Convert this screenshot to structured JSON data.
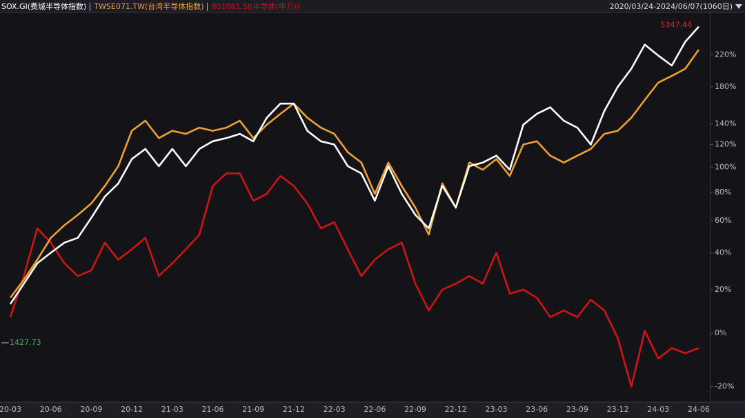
{
  "chart_data": {
    "type": "line",
    "date_range": "2020/03/24-2024/06/07(1060日)",
    "categories": [
      "20-03",
      null,
      null,
      "20-06",
      null,
      null,
      "20-09",
      null,
      null,
      "20-12",
      null,
      null,
      "21-03",
      null,
      null,
      "21-06",
      null,
      null,
      "21-09",
      null,
      null,
      "21-12",
      null,
      null,
      "22-03",
      null,
      null,
      "22-06",
      null,
      null,
      "22-09",
      null,
      null,
      "22-12",
      null,
      null,
      "23-03",
      null,
      null,
      "23-06",
      null,
      null,
      "23-09",
      null,
      null,
      "23-12",
      null,
      null,
      "24-03",
      null,
      null,
      "24-06"
    ],
    "series": [
      {
        "name": "SOX.GI(费城半导体指数)",
        "color": "#ffffff",
        "values": [
          13,
          23,
          34,
          40,
          46,
          49,
          62,
          77,
          87,
          107,
          116,
          101,
          116,
          101,
          116,
          123,
          126,
          130,
          123,
          146,
          161,
          161,
          133,
          123,
          120,
          101,
          95,
          74,
          101,
          79,
          64,
          55,
          85,
          69,
          101,
          104,
          110,
          98,
          139,
          150,
          157,
          143,
          136,
          120,
          153,
          180,
          202,
          234,
          219,
          206,
          238,
          260
        ]
      },
      {
        "name": "TWSE071.TW(台湾半导体指数)",
        "color": "#f0a030",
        "values": [
          16,
          25,
          36,
          49,
          57,
          64,
          72,
          85,
          101,
          133,
          143,
          126,
          133,
          130,
          136,
          133,
          136,
          143,
          126,
          139,
          150,
          161,
          146,
          136,
          130,
          113,
          104,
          79,
          104,
          85,
          69,
          51,
          87,
          69,
          104,
          98,
          107,
          93,
          120,
          123,
          110,
          104,
          110,
          116,
          130,
          133,
          146,
          165,
          185,
          193,
          202,
          227
        ]
      },
      {
        "name": "801081.SI(半导体(申万))",
        "color": "#d01414",
        "values": [
          7,
          27,
          55,
          46,
          34,
          27,
          30,
          46,
          36,
          42,
          49,
          27,
          34,
          42,
          51,
          85,
          95,
          95,
          74,
          79,
          93,
          85,
          72,
          55,
          59,
          42,
          27,
          36,
          42,
          46,
          23,
          10,
          20,
          23,
          27,
          23,
          40,
          18,
          20,
          16,
          7,
          10,
          7,
          15,
          10,
          -2,
          -20,
          1,
          -10,
          -6,
          -8,
          -6
        ]
      }
    ],
    "annotations": [
      "5347.44",
      "1427.73"
    ],
    "ylim": [
      -25,
      282
    ],
    "log": true,
    "yticks": [
      {
        "value": -20,
        "label": "-20%"
      },
      {
        "value": 0,
        "label": "0%"
      },
      {
        "value": 20,
        "label": "20%"
      },
      {
        "value": 40,
        "label": "40%"
      },
      {
        "value": 60,
        "label": "60%"
      },
      {
        "value": 80,
        "label": "80%"
      },
      {
        "value": 100,
        "label": "100%"
      },
      {
        "value": 120,
        "label": "120%"
      },
      {
        "value": 140,
        "label": "140%"
      },
      {
        "value": 180,
        "label": "180%"
      },
      {
        "value": 220,
        "label": "220%"
      }
    ]
  }
}
